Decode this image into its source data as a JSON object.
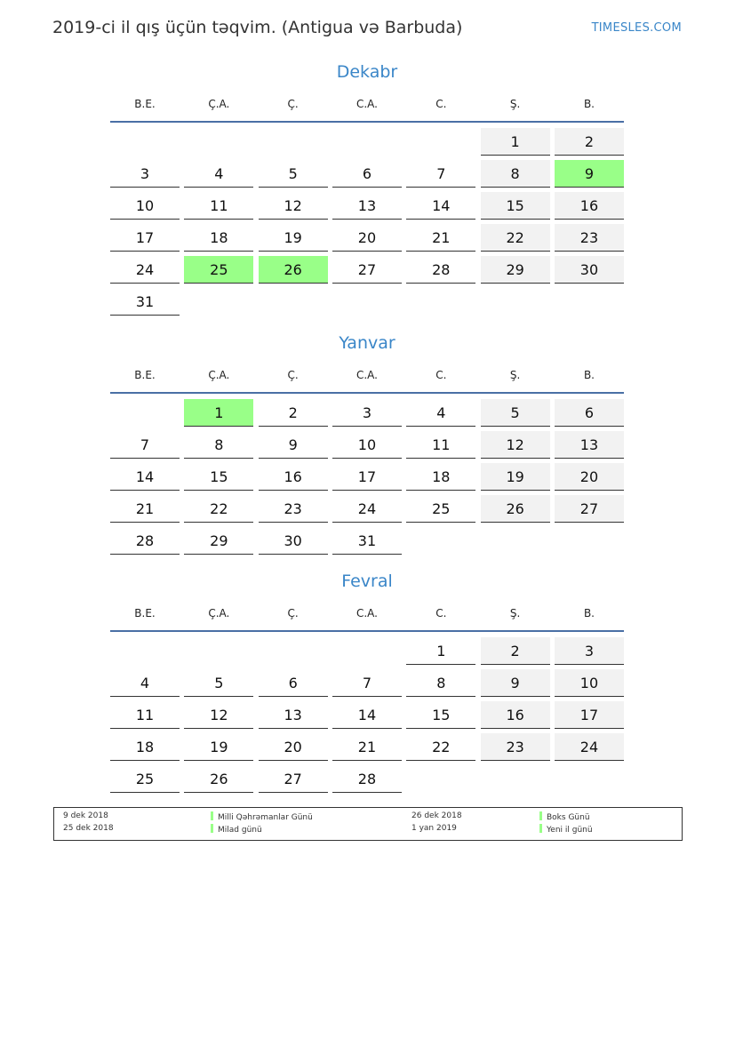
{
  "header": {
    "title": "2019-ci il qış üçün təqvim. (Antigua və Barbuda)",
    "brand": "TIMESLES.COM"
  },
  "weekdays": [
    "B.E.",
    "Ç.A.",
    "Ç.",
    "C.A.",
    "C.",
    "Ş.",
    "B."
  ],
  "colors": {
    "accent": "#3a86c8",
    "holiday": "#99ff88",
    "weekend": "#f2f2f2"
  },
  "months": [
    {
      "name": "Dekabr",
      "first_weekday_index": 5,
      "days": 31,
      "holidays": [
        9,
        25,
        26
      ]
    },
    {
      "name": "Yanvar",
      "first_weekday_index": 1,
      "days": 31,
      "holidays": [
        1
      ]
    },
    {
      "name": "Fevral",
      "first_weekday_index": 4,
      "days": 28,
      "holidays": []
    }
  ],
  "legend": [
    {
      "date": "9 dek 2018",
      "name": "Milli Qəhrəmanlar Günü"
    },
    {
      "date": "25 dek 2018",
      "name": "Milad günü"
    },
    {
      "date": "26 dek 2018",
      "name": "Boks Günü"
    },
    {
      "date": "1 yan 2019",
      "name": "Yeni il günü"
    }
  ]
}
